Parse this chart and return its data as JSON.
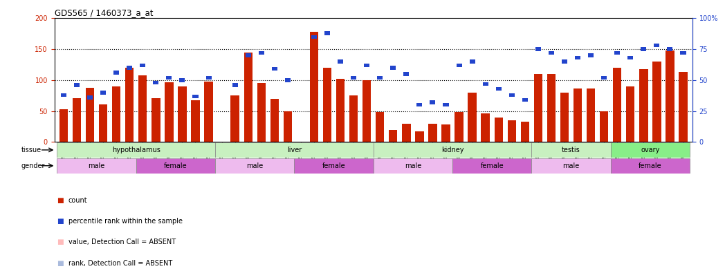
{
  "title": "GDS565 / 1460373_a_at",
  "samples": [
    "GSM19215",
    "GSM19216",
    "GSM19217",
    "GSM19218",
    "GSM19219",
    "GSM19220",
    "GSM19221",
    "GSM19222",
    "GSM19223",
    "GSM19224",
    "GSM19225",
    "GSM19226",
    "GSM19227",
    "GSM19228",
    "GSM19229",
    "GSM19230",
    "GSM19231",
    "GSM19232",
    "GSM19233",
    "GSM19234",
    "GSM19235",
    "GSM19236",
    "GSM19237",
    "GSM19238",
    "GSM19239",
    "GSM19240",
    "GSM19241",
    "GSM19242",
    "GSM19243",
    "GSM19244",
    "GSM19245",
    "GSM19246",
    "GSM19247",
    "GSM19248",
    "GSM19249",
    "GSM19250",
    "GSM19251",
    "GSM19252",
    "GSM19253",
    "GSM19254",
    "GSM19255",
    "GSM19256",
    "GSM19257",
    "GSM19258",
    "GSM19259",
    "GSM19260",
    "GSM19261",
    "GSM19262"
  ],
  "count_values": [
    53,
    71,
    88,
    61,
    90,
    120,
    108,
    71,
    97,
    90,
    68,
    98,
    0,
    75,
    145,
    95,
    70,
    50,
    0,
    178,
    120,
    102,
    75,
    100,
    48,
    20,
    30,
    17,
    30,
    29,
    48,
    80,
    46,
    40,
    35,
    33,
    110,
    110,
    80,
    86,
    87,
    50,
    120,
    90,
    118,
    130,
    148,
    113
  ],
  "percentile_values": [
    38,
    46,
    36,
    40,
    56,
    60,
    62,
    48,
    52,
    50,
    37,
    52,
    0,
    46,
    70,
    72,
    59,
    50,
    0,
    85,
    88,
    65,
    52,
    62,
    52,
    60,
    55,
    30,
    32,
    30,
    62,
    65,
    47,
    43,
    38,
    34,
    75,
    72,
    65,
    68,
    70,
    52,
    72,
    68,
    75,
    78,
    75,
    72
  ],
  "absent_count": [
    false,
    false,
    false,
    false,
    false,
    false,
    false,
    false,
    false,
    false,
    false,
    false,
    true,
    false,
    false,
    false,
    false,
    false,
    true,
    false,
    false,
    false,
    false,
    false,
    false,
    false,
    false,
    false,
    false,
    false,
    false,
    false,
    false,
    false,
    false,
    false,
    false,
    false,
    false,
    false,
    false,
    false,
    false,
    false,
    false,
    false,
    false,
    false
  ],
  "absent_rank": [
    false,
    false,
    false,
    false,
    false,
    false,
    false,
    false,
    false,
    false,
    false,
    false,
    false,
    false,
    false,
    false,
    false,
    false,
    true,
    false,
    false,
    false,
    false,
    false,
    false,
    false,
    false,
    false,
    false,
    false,
    false,
    false,
    false,
    false,
    false,
    false,
    false,
    false,
    false,
    false,
    false,
    false,
    false,
    false,
    false,
    false,
    false,
    false
  ],
  "tissue_groups": [
    {
      "label": "hypothalamus",
      "start": 0,
      "end": 11
    },
    {
      "label": "liver",
      "start": 12,
      "end": 23
    },
    {
      "label": "kidney",
      "start": 24,
      "end": 35
    },
    {
      "label": "testis",
      "start": 36,
      "end": 41
    },
    {
      "label": "ovary",
      "start": 42,
      "end": 47
    }
  ],
  "gender_groups": [
    {
      "label": "male",
      "start": 0,
      "end": 5
    },
    {
      "label": "female",
      "start": 6,
      "end": 11
    },
    {
      "label": "male",
      "start": 12,
      "end": 17
    },
    {
      "label": "female",
      "start": 18,
      "end": 23
    },
    {
      "label": "male",
      "start": 24,
      "end": 29
    },
    {
      "label": "female",
      "start": 30,
      "end": 35
    },
    {
      "label": "male",
      "start": 36,
      "end": 41
    },
    {
      "label": "female",
      "start": 42,
      "end": 47
    }
  ],
  "ylim_left": [
    0,
    200
  ],
  "ylim_right": [
    0,
    100
  ],
  "yticks_left": [
    0,
    50,
    100,
    150,
    200
  ],
  "yticks_right": [
    0,
    25,
    50,
    75,
    100
  ],
  "ytick_labels_right": [
    "0",
    "25",
    "50",
    "75",
    "100%"
  ],
  "color_count": "#cc2200",
  "color_absent_count": "#ffbbbb",
  "color_percentile": "#2244cc",
  "color_absent_rank": "#aabbdd",
  "bar_width": 0.65,
  "tissue_light_color": "#c8f0c0",
  "tissue_dark_color": "#88ee88",
  "gender_light_color": "#eebbee",
  "gender_dark_color": "#cc66cc",
  "left_axis_color": "#cc2200",
  "right_axis_color": "#2244cc"
}
